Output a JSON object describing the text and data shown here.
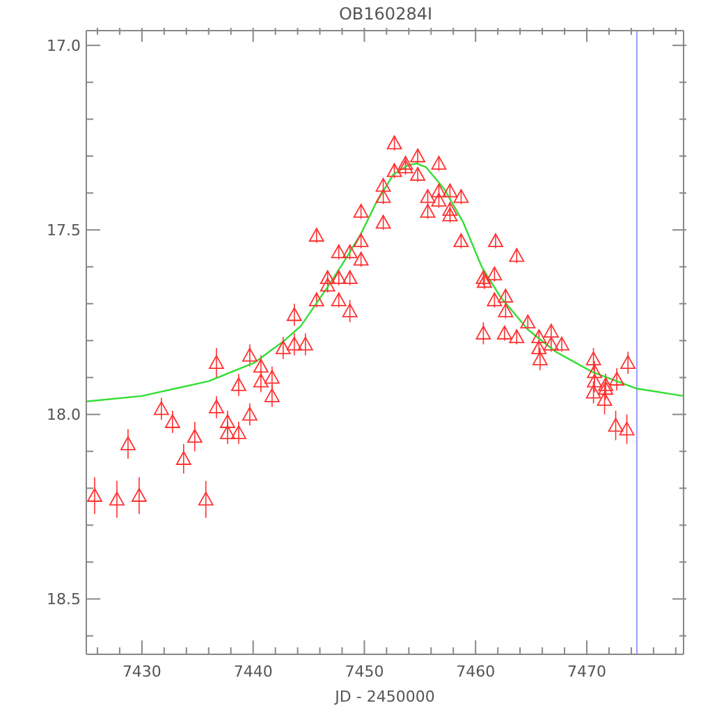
{
  "chart_data": {
    "type": "scatter",
    "title": "OB160284I",
    "xlabel": "JD - 2450000",
    "xlim": [
      7425,
      7478.7
    ],
    "ylim": [
      18.65,
      16.96
    ],
    "xticks": [
      {
        "value": 7426,
        "label": null
      },
      {
        "value": 7428,
        "label": null
      },
      {
        "value": 7430,
        "label": "7430"
      },
      {
        "value": 7432,
        "label": null
      },
      {
        "value": 7434,
        "label": null
      },
      {
        "value": 7436,
        "label": null
      },
      {
        "value": 7438,
        "label": null
      },
      {
        "value": 7440,
        "label": "7440"
      },
      {
        "value": 7442,
        "label": null
      },
      {
        "value": 7444,
        "label": null
      },
      {
        "value": 7446,
        "label": null
      },
      {
        "value": 7448,
        "label": null
      },
      {
        "value": 7450,
        "label": "7450"
      },
      {
        "value": 7452,
        "label": null
      },
      {
        "value": 7454,
        "label": null
      },
      {
        "value": 7456,
        "label": null
      },
      {
        "value": 7458,
        "label": null
      },
      {
        "value": 7460,
        "label": "7460"
      },
      {
        "value": 7462,
        "label": null
      },
      {
        "value": 7464,
        "label": null
      },
      {
        "value": 7466,
        "label": null
      },
      {
        "value": 7468,
        "label": null
      },
      {
        "value": 7470,
        "label": "7470"
      },
      {
        "value": 7472,
        "label": null
      },
      {
        "value": 7474,
        "label": null
      },
      {
        "value": 7476,
        "label": null
      },
      {
        "value": 7478,
        "label": null
      }
    ],
    "yticks": [
      {
        "value": 17,
        "label": "17.0"
      },
      {
        "value": 17.1,
        "label": null
      },
      {
        "value": 17.2,
        "label": null
      },
      {
        "value": 17.3,
        "label": null
      },
      {
        "value": 17.4,
        "label": null
      },
      {
        "value": 17.5,
        "label": "17.5"
      },
      {
        "value": 17.6,
        "label": null
      },
      {
        "value": 17.7,
        "label": null
      },
      {
        "value": 17.8,
        "label": null
      },
      {
        "value": 17.9,
        "label": null
      },
      {
        "value": 18,
        "label": "18.0"
      },
      {
        "value": 18.1,
        "label": null
      },
      {
        "value": 18.2,
        "label": null
      },
      {
        "value": 18.3,
        "label": null
      },
      {
        "value": 18.4,
        "label": null
      },
      {
        "value": 18.5,
        "label": "18.5"
      },
      {
        "value": 18.6,
        "label": null
      }
    ],
    "ref_lines": [
      {
        "axis": "x",
        "value": 7474.5,
        "color": "#9999ff"
      }
    ],
    "series": [
      {
        "marker": "triangle",
        "color": "#ff3030",
        "x": [
          7425.75,
          7427.75,
          7428.75,
          7429.75,
          7431.75,
          7432.75,
          7433.75,
          7434.75,
          7435.75,
          7436.7,
          7436.7,
          7437.7,
          7437.7,
          7438.7,
          7438.7,
          7439.7,
          7439.7,
          7440.7,
          7440.7,
          7441.7,
          7441.7,
          7442.7,
          7443.7,
          7443.7,
          7444.7,
          7445.7,
          7445.7,
          7446.7,
          7446.7,
          7447.7,
          7447.7,
          7447.7,
          7448.7,
          7448.7,
          7448.7,
          7449.7,
          7449.7,
          7449.7,
          7451.7,
          7451.7,
          7451.7,
          7452.7,
          7452.7,
          7453.7,
          7453.7,
          7454.8,
          7454.8,
          7455.7,
          7455.7,
          7456.7,
          7456.7,
          7456.7,
          7457.7,
          7457.7,
          7457.7,
          7458.7,
          7458.7,
          7460.7,
          7460.8,
          7460.7,
          7461.7,
          7461.7,
          7461.8,
          7462.7,
          7462.7,
          7462.6,
          7463.7,
          7463.7,
          7464.7,
          7465.7,
          7465.7,
          7465.8,
          7466.8,
          7466.8,
          7467.75,
          7470.6,
          7470.7,
          7470.7,
          7470.6,
          7471.7,
          7471.7,
          7471.6,
          7472.7,
          7473.7,
          7472.6,
          7473.6
        ],
        "values": [
          18.22,
          18.23,
          18.08,
          18.22,
          17.985,
          18.02,
          18.12,
          18.06,
          18.23,
          17.86,
          17.98,
          18.02,
          18.05,
          17.92,
          18.05,
          17.84,
          18.0,
          17.87,
          17.91,
          17.9,
          17.95,
          17.82,
          17.73,
          17.81,
          17.81,
          17.515,
          17.69,
          17.63,
          17.65,
          17.56,
          17.63,
          17.69,
          17.56,
          17.63,
          17.72,
          17.45,
          17.53,
          17.58,
          17.38,
          17.41,
          17.48,
          17.265,
          17.34,
          17.32,
          17.33,
          17.3,
          17.35,
          17.41,
          17.45,
          17.32,
          17.395,
          17.42,
          17.395,
          17.445,
          17.46,
          17.41,
          17.53,
          17.63,
          17.64,
          17.78,
          17.62,
          17.69,
          17.53,
          17.68,
          17.72,
          17.78,
          17.57,
          17.79,
          17.75,
          17.79,
          17.82,
          17.85,
          17.775,
          17.81,
          17.81,
          17.85,
          17.885,
          17.91,
          17.94,
          17.92,
          17.93,
          17.96,
          17.905,
          17.86,
          18.03,
          18.04
        ],
        "errors": [
          0.05,
          0.05,
          0.04,
          0.05,
          0.03,
          0.03,
          0.04,
          0.04,
          0.05,
          0.04,
          0.03,
          0.03,
          0.03,
          0.03,
          0.03,
          0.03,
          0.03,
          0.03,
          0.03,
          0.03,
          0.03,
          0.03,
          0.03,
          0.03,
          0.03,
          0.02,
          0.02,
          0.02,
          0.02,
          0.02,
          0.02,
          0.02,
          0.02,
          0.02,
          0.03,
          0.02,
          0.02,
          0.02,
          0.02,
          0.02,
          0.02,
          0.02,
          0.02,
          0.02,
          0.02,
          0.02,
          0.02,
          0.02,
          0.02,
          0.02,
          0.02,
          0.02,
          0.02,
          0.02,
          0.02,
          0.02,
          0.02,
          0.02,
          0.02,
          0.03,
          0.02,
          0.02,
          0.02,
          0.02,
          0.02,
          0.02,
          0.02,
          0.02,
          0.02,
          0.02,
          0.02,
          0.03,
          0.02,
          0.02,
          0.02,
          0.03,
          0.03,
          0.03,
          0.03,
          0.03,
          0.03,
          0.04,
          0.03,
          0.03,
          0.04,
          0.04
        ]
      },
      {
        "type": "line",
        "marker": "none",
        "line_style": "solid",
        "color": "#33dd33",
        "x": [
          7425,
          7430,
          7436,
          7440.1,
          7442.8,
          7444.3,
          7446.8,
          7448.5,
          7449.7,
          7451,
          7452.6,
          7453.9,
          7454.7,
          7455.55,
          7457.2,
          7458.9,
          7460.55,
          7462.2,
          7464.7,
          7467.2,
          7470.5,
          7474.5,
          7478.7
        ],
        "values": [
          17.965,
          17.95,
          17.91,
          17.86,
          17.8,
          17.76,
          17.65,
          17.57,
          17.51,
          17.43,
          17.35,
          17.325,
          17.32,
          17.33,
          17.39,
          17.48,
          17.6,
          17.68,
          17.77,
          17.83,
          17.885,
          17.93,
          17.95
        ]
      }
    ]
  }
}
